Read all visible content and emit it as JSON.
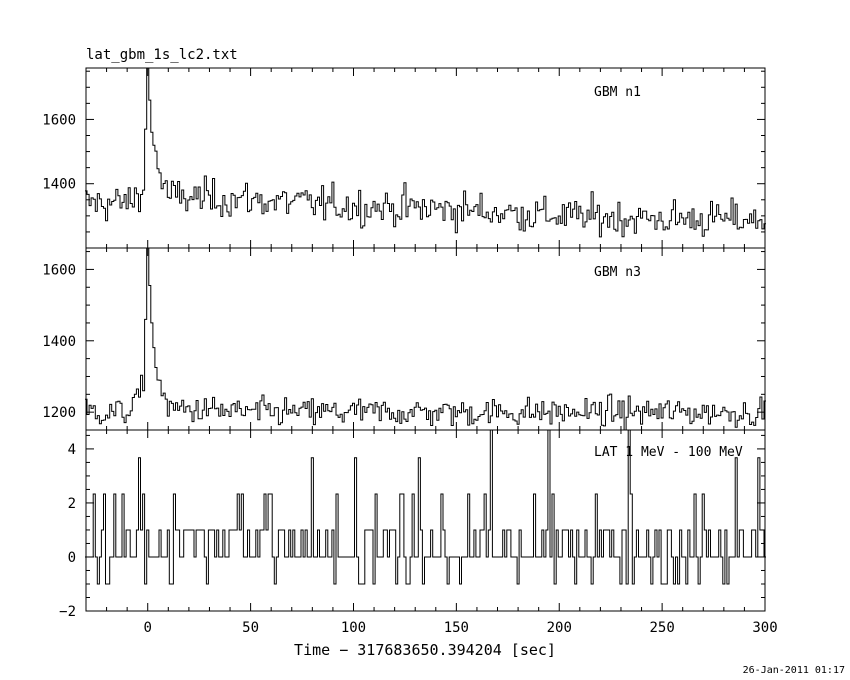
{
  "header": {
    "title": "lat_gbm_1s_lc2.txt",
    "date": "26-Jan-2011 01:17"
  },
  "chart_data": [
    {
      "type": "line",
      "name": "GBM n1",
      "label": "GBM n1",
      "xlim": [
        -30,
        300
      ],
      "ylim": [
        1200,
        1760
      ],
      "yticks": [
        1400,
        1600
      ],
      "ytick_labels": [
        "1400",
        "1600"
      ],
      "baseline": 1330,
      "peak": {
        "x": 0,
        "y": 1760
      },
      "description_points": {
        "x": [
          -30,
          -10,
          -2,
          0,
          2,
          5,
          10,
          50,
          100,
          150,
          200,
          250,
          300
        ],
        "y": [
          1340,
          1340,
          1380,
          1760,
          1560,
          1450,
          1360,
          1350,
          1330,
          1320,
          1300,
          1290,
          1290
        ]
      }
    },
    {
      "type": "line",
      "name": "GBM n3",
      "label": "GBM n3",
      "xlim": [
        -30,
        300
      ],
      "ylim": [
        1150,
        1660
      ],
      "yticks": [
        1200,
        1400,
        1600
      ],
      "ytick_labels": [
        "1200",
        "1400",
        "1600"
      ],
      "baseline": 1200,
      "peak": {
        "x": 0,
        "y": 1660
      },
      "description_points": {
        "x": [
          -30,
          -10,
          -2,
          0,
          2,
          5,
          10,
          50,
          100,
          150,
          200,
          250,
          300
        ],
        "y": [
          1200,
          1200,
          1260,
          1660,
          1450,
          1300,
          1210,
          1200,
          1200,
          1200,
          1200,
          1200,
          1200
        ]
      }
    },
    {
      "type": "line",
      "name": "LAT 1 MeV - 100 MeV",
      "label": "LAT 1 MeV - 100 MeV",
      "xlim": [
        -30,
        300
      ],
      "ylim": [
        -2,
        4.7
      ],
      "yticks": [
        -2,
        0,
        2,
        4
      ],
      "ytick_labels": [
        "−2",
        "0",
        "2",
        "4"
      ],
      "levels": [
        -1,
        0,
        1,
        2.33,
        3.67,
        5
      ],
      "xticks": [
        0,
        50,
        100,
        150,
        200,
        250,
        300
      ],
      "xtick_labels": [
        "0",
        "50",
        "100",
        "150",
        "200",
        "250",
        "300"
      ],
      "xlabel": "Time − 317683650.394204 [sec]"
    }
  ]
}
